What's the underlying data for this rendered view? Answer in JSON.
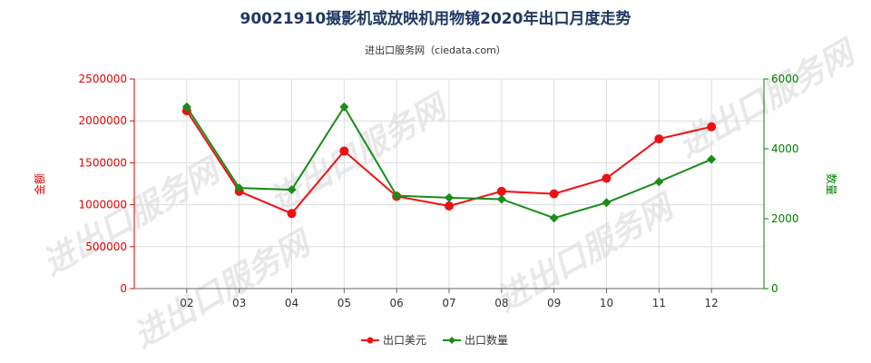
{
  "chart_data": {
    "type": "line",
    "title": "90021910摄影机或放映机用物镜2020年出口月度走势",
    "subtitle": "进出口服务网（ciedata.com）",
    "watermark": "进出口服务网",
    "categories": [
      "02",
      "03",
      "04",
      "05",
      "06",
      "07",
      "08",
      "09",
      "10",
      "11",
      "12"
    ],
    "left_axis": {
      "label": "金额",
      "min": 0,
      "max": 2500000,
      "ticks": [
        "0",
        "500000",
        "1000000",
        "1500000",
        "2000000",
        "2500000"
      ],
      "tick_values": [
        0,
        500000,
        1000000,
        1500000,
        2000000,
        2500000
      ],
      "color": "#e60000"
    },
    "right_axis": {
      "label": "数量",
      "min": 0,
      "max": 6000,
      "ticks": [
        "0",
        "2000",
        "4000",
        "6000"
      ],
      "tick_values": [
        0,
        2000,
        4000,
        6000
      ],
      "color": "#008000"
    },
    "series": [
      {
        "name": "出口美元",
        "axis": "left",
        "color": "#ee1111",
        "marker": "circle",
        "values": [
          2120000,
          1160000,
          895000,
          1640000,
          1100000,
          985000,
          1160000,
          1130000,
          1315000,
          1785000,
          1930000
        ]
      },
      {
        "name": "出口数量",
        "axis": "right",
        "color": "#1a8c1a",
        "marker": "diamond",
        "values": [
          5200,
          2880,
          2830,
          5200,
          2660,
          2600,
          2560,
          2020,
          2460,
          3060,
          3700
        ]
      }
    ]
  }
}
